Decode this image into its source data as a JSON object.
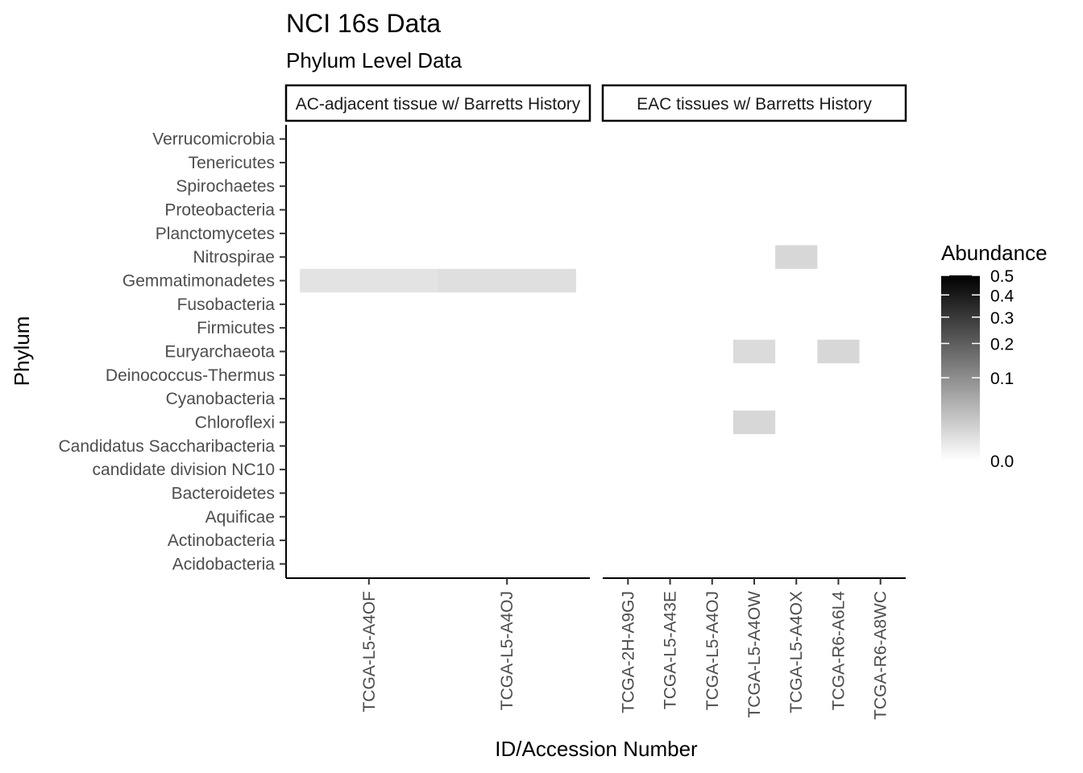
{
  "chart_data": {
    "type": "heatmap",
    "title": "NCI 16s Data",
    "subtitle": "Phylum Level Data",
    "xlabel": "ID/Accession Number",
    "ylabel": "Phylum",
    "y_categories": [
      "Acidobacteria",
      "Actinobacteria",
      "Aquificae",
      "Bacteroidetes",
      "candidate division NC10",
      "Candidatus Saccharibacteria",
      "Chloroflexi",
      "Cyanobacteria",
      "Deinococcus-Thermus",
      "Euryarchaeota",
      "Firmicutes",
      "Fusobacteria",
      "Gemmatimonadetes",
      "Nitrospirae",
      "Planctomycetes",
      "Proteobacteria",
      "Spirochaetes",
      "Tenericutes",
      "Verrucomicrobia"
    ],
    "facets": [
      {
        "label": "AC-adjacent tissue w/ Barretts History",
        "x_categories": [
          "TCGA-L5-A4OF",
          "TCGA-L5-A4OJ"
        ],
        "cells": [
          {
            "x": "TCGA-L5-A4OF",
            "y": "Gemmatimonadetes",
            "value": 0.006
          },
          {
            "x": "TCGA-L5-A4OJ",
            "y": "Gemmatimonadetes",
            "value": 0.008
          }
        ]
      },
      {
        "label": "EAC tissues w/ Barretts History",
        "x_categories": [
          "TCGA-2H-A9GJ",
          "TCGA-L5-A43E",
          "TCGA-L5-A4OJ",
          "TCGA-L5-A4OW",
          "TCGA-L5-A4OX",
          "TCGA-R6-A6L4",
          "TCGA-R6-A8WC"
        ],
        "cells": [
          {
            "x": "TCGA-L5-A4OX",
            "y": "Nitrospirae",
            "value": 0.012
          },
          {
            "x": "TCGA-L5-A4OW",
            "y": "Euryarchaeota",
            "value": 0.01
          },
          {
            "x": "TCGA-R6-A6L4",
            "y": "Euryarchaeota",
            "value": 0.012
          },
          {
            "x": "TCGA-L5-A4OW",
            "y": "Chloroflexi",
            "value": 0.012
          }
        ]
      }
    ],
    "legend": {
      "title": "Abundance",
      "ticks": [
        "0.5",
        "0.4",
        "0.3",
        "0.2",
        "0.1",
        "0.0"
      ],
      "tick_values": [
        0.5,
        0.4,
        0.3,
        0.2,
        0.1,
        0.0
      ],
      "scale": "sqrt",
      "low_color": "#ffffff",
      "high_color": "#000000",
      "placement": "right"
    },
    "grid": false
  }
}
